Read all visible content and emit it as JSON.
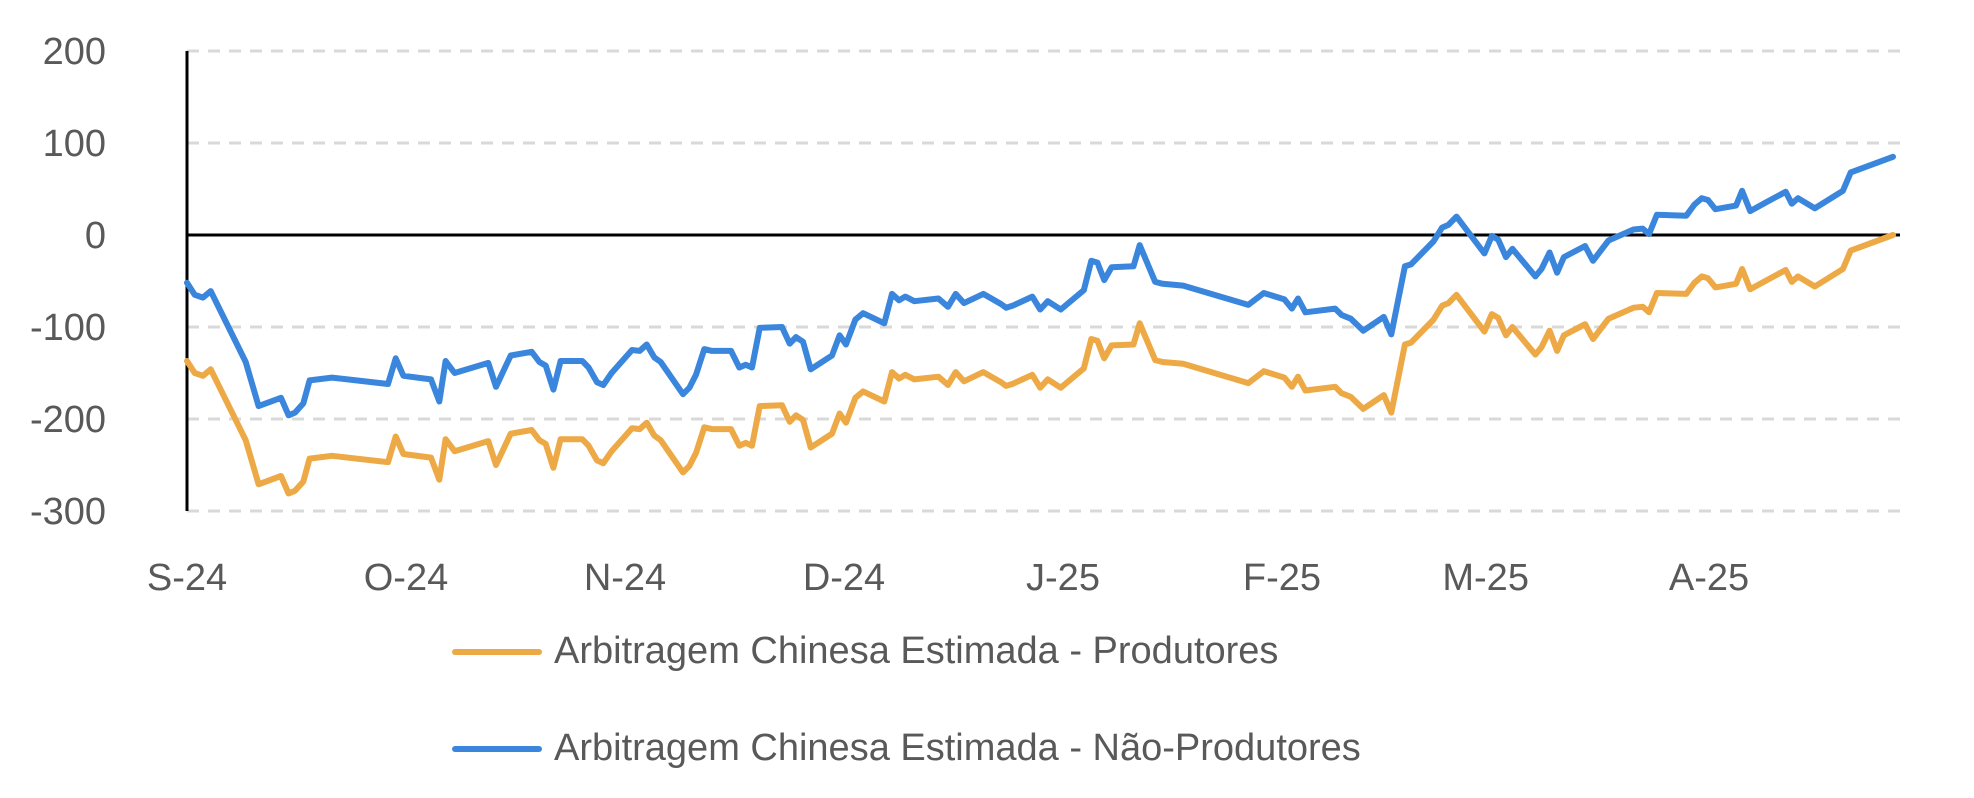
{
  "chart_data": {
    "type": "line",
    "title": "",
    "xlabel": "",
    "ylabel": "",
    "ylim": [
      -300,
      200
    ],
    "yticks": [
      200,
      100,
      0,
      -100,
      -200,
      -300
    ],
    "x_unit": "months since Sep-2024",
    "xlim": [
      0,
      7.8
    ],
    "xticks": [
      {
        "label": "S-24",
        "x": 0
      },
      {
        "label": "O-24",
        "x": 1
      },
      {
        "label": "N-24",
        "x": 2
      },
      {
        "label": "D-24",
        "x": 3
      },
      {
        "label": "J-25",
        "x": 4
      },
      {
        "label": "F-25",
        "x": 5
      },
      {
        "label": "M-25",
        "x": 5.93
      },
      {
        "label": "A-25",
        "x": 6.95
      }
    ],
    "grid": "horizontal dashed",
    "legend_position": "bottom",
    "x": [
      0,
      0.035,
      0.073,
      0.108,
      0.268,
      0.327,
      0.429,
      0.464,
      0.493,
      0.531,
      0.56,
      0.662,
      0.918,
      0.953,
      0.988,
      1.114,
      1.152,
      1.181,
      1.222,
      1.376,
      1.411,
      1.478,
      1.574,
      1.609,
      1.638,
      1.673,
      1.706,
      1.805,
      1.834,
      1.872,
      1.901,
      1.939,
      2.032,
      2.067,
      2.099,
      2.134,
      2.163,
      2.265,
      2.294,
      2.324,
      2.362,
      2.397,
      2.484,
      2.522,
      2.551,
      2.58,
      2.615,
      2.717,
      2.752,
      2.781,
      2.813,
      2.848,
      2.945,
      2.98,
      3.009,
      3.052,
      3.087,
      3.184,
      3.219,
      3.251,
      3.28,
      3.321,
      3.431,
      3.475,
      3.51,
      3.548,
      3.636,
      3.717,
      3.74,
      3.769,
      3.86,
      3.896,
      3.93,
      3.99,
      4.095,
      4.129,
      4.157,
      4.188,
      4.222,
      4.322,
      4.35,
      4.421,
      4.455,
      4.549,
      4.846,
      4.917,
      5.011,
      5.045,
      5.073,
      5.107,
      5.243,
      5.272,
      5.314,
      5.371,
      5.465,
      5.499,
      5.561,
      5.589,
      5.692,
      5.731,
      5.76,
      5.797,
      5.924,
      5.958,
      5.987,
      6.023,
      6.052,
      6.157,
      6.185,
      6.222,
      6.256,
      6.287,
      6.384,
      6.42,
      6.491,
      6.605,
      6.647,
      6.676,
      6.712,
      6.846,
      6.883,
      6.917,
      6.945,
      6.979,
      7.073,
      7.101,
      7.138,
      7.214,
      7.3,
      7.328,
      7.356,
      7.433,
      7.561,
      7.597,
      7.79
    ],
    "series": [
      {
        "name": "Arbitragem Chinesa Estimada - Produtores",
        "color": "#EDA945",
        "values": [
          -137,
          -150,
          -153,
          -146,
          -223,
          -271,
          -262,
          -281,
          -278,
          -268,
          -243,
          -240,
          -247,
          -219,
          -238,
          -242,
          -266,
          -222,
          -235,
          -224,
          -250,
          -216,
          -212,
          -223,
          -227,
          -253,
          -222,
          -222,
          -229,
          -245,
          -248,
          -235,
          -210,
          -211,
          -204,
          -218,
          -223,
          -258,
          -251,
          -237,
          -209,
          -211,
          -211,
          -229,
          -226,
          -229,
          -186,
          -185,
          -203,
          -196,
          -201,
          -231,
          -216,
          -194,
          -204,
          -177,
          -170,
          -181,
          -149,
          -156,
          -152,
          -157,
          -154,
          -163,
          -149,
          -159,
          -149,
          -160,
          -164,
          -162,
          -152,
          -166,
          -157,
          -166,
          -145,
          -113,
          -115,
          -134,
          -120,
          -119,
          -96,
          -136,
          -138,
          -140,
          -161,
          -148,
          -155,
          -165,
          -154,
          -169,
          -165,
          -172,
          -176,
          -189,
          -174,
          -193,
          -119,
          -117,
          -92,
          -77,
          -74,
          -65,
          -105,
          -86,
          -90,
          -109,
          -100,
          -130,
          -122,
          -104,
          -126,
          -109,
          -97,
          -113,
          -91,
          -79,
          -78,
          -84,
          -63,
          -64,
          -52,
          -45,
          -47,
          -57,
          -53,
          -37,
          -59,
          -49,
          -38,
          -51,
          -45,
          -56,
          -37,
          -17,
          0
        ]
      },
      {
        "name": "Arbitragem Chinesa Estimada - Não-Produtores",
        "color": "#3B86DD",
        "values": [
          -52,
          -65,
          -68,
          -61,
          -138,
          -186,
          -177,
          -196,
          -193,
          -183,
          -158,
          -155,
          -162,
          -134,
          -153,
          -157,
          -181,
          -137,
          -150,
          -139,
          -165,
          -131,
          -127,
          -138,
          -142,
          -168,
          -137,
          -137,
          -144,
          -160,
          -163,
          -150,
          -125,
          -126,
          -119,
          -133,
          -138,
          -173,
          -166,
          -152,
          -124,
          -126,
          -126,
          -144,
          -141,
          -144,
          -101,
          -100,
          -118,
          -111,
          -116,
          -146,
          -131,
          -109,
          -119,
          -92,
          -85,
          -96,
          -64,
          -71,
          -67,
          -72,
          -69,
          -78,
          -64,
          -74,
          -64,
          -75,
          -79,
          -77,
          -67,
          -81,
          -72,
          -81,
          -60,
          -28,
          -30,
          -49,
          -35,
          -34,
          -11,
          -51,
          -53,
          -55,
          -76,
          -63,
          -70,
          -80,
          -69,
          -84,
          -80,
          -87,
          -91,
          -104,
          -89,
          -108,
          -34,
          -32,
          -7,
          8,
          11,
          20,
          -20,
          -1,
          -5,
          -24,
          -15,
          -45,
          -37,
          -19,
          -41,
          -24,
          -12,
          -28,
          -6,
          6,
          7,
          1,
          22,
          21,
          33,
          40,
          38,
          28,
          32,
          48,
          26,
          36,
          47,
          34,
          40,
          29,
          48,
          68,
          85
        ]
      }
    ]
  }
}
